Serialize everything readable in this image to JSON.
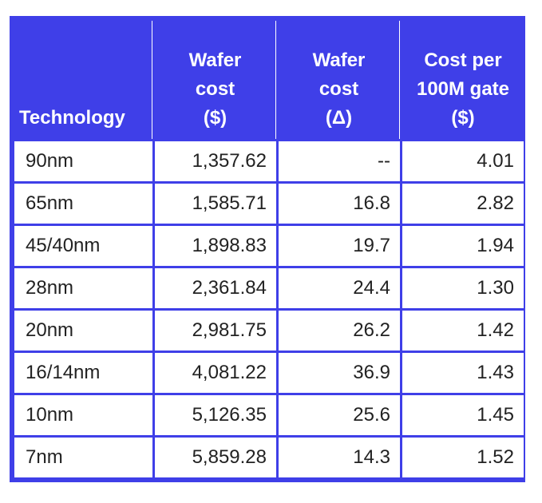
{
  "chart_data": {
    "type": "table",
    "columns": [
      {
        "key": "technology",
        "label_lines": [
          "Technology"
        ]
      },
      {
        "key": "wafer_cost",
        "label_lines": [
          "Wafer",
          "cost",
          "($)"
        ]
      },
      {
        "key": "wafer_cost_delta",
        "label_lines": [
          "Wafer",
          "cost",
          "(Δ)"
        ]
      },
      {
        "key": "cost_per_100m_gate",
        "label_lines": [
          "Cost per",
          "100M gate",
          "($)"
        ]
      }
    ],
    "rows": [
      {
        "technology": "90nm",
        "wafer_cost": "1,357.62",
        "wafer_cost_delta": "--",
        "cost_per_100m_gate": "4.01"
      },
      {
        "technology": "65nm",
        "wafer_cost": "1,585.71",
        "wafer_cost_delta": "16.8",
        "cost_per_100m_gate": "2.82"
      },
      {
        "technology": "45/40nm",
        "wafer_cost": "1,898.83",
        "wafer_cost_delta": "19.7",
        "cost_per_100m_gate": "1.94"
      },
      {
        "technology": "28nm",
        "wafer_cost": "2,361.84",
        "wafer_cost_delta": "24.4",
        "cost_per_100m_gate": "1.30"
      },
      {
        "technology": "20nm",
        "wafer_cost": "2,981.75",
        "wafer_cost_delta": "26.2",
        "cost_per_100m_gate": "1.42"
      },
      {
        "technology": "16/14nm",
        "wafer_cost": "4,081.22",
        "wafer_cost_delta": "36.9",
        "cost_per_100m_gate": "1.43"
      },
      {
        "technology": "10nm",
        "wafer_cost": "5,126.35",
        "wafer_cost_delta": "25.6",
        "cost_per_100m_gate": "1.45"
      },
      {
        "technology": "7nm",
        "wafer_cost": "5,859.28",
        "wafer_cost_delta": "14.3",
        "cost_per_100m_gate": "1.52"
      }
    ]
  },
  "colors": {
    "header_bg": "#3f3fe8",
    "header_text": "#ffffff",
    "cell_bg": "#ffffff",
    "cell_text": "#222222"
  }
}
